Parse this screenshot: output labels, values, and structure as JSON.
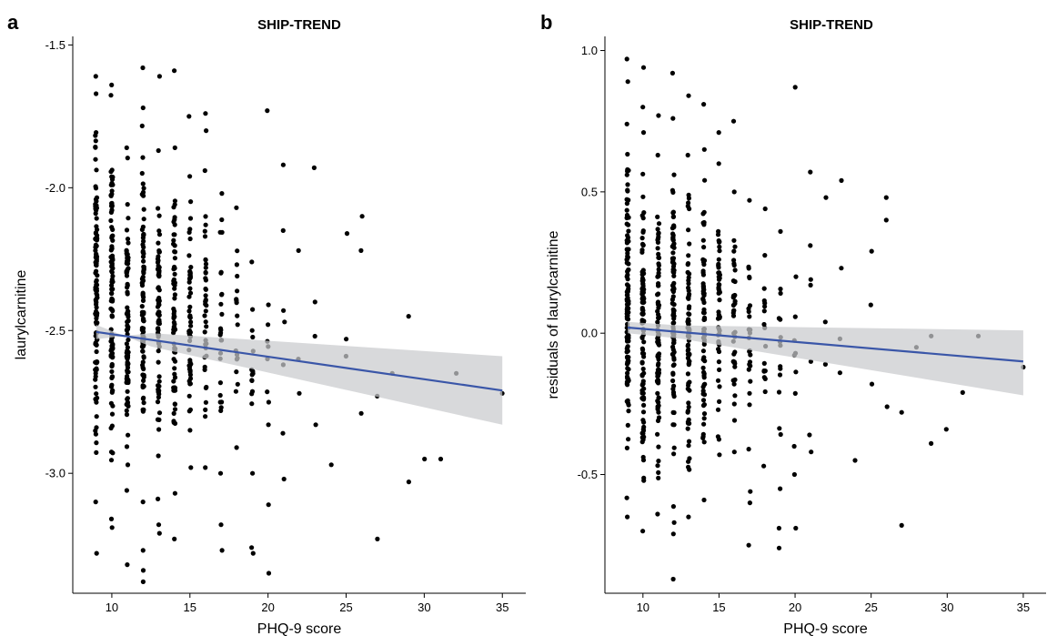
{
  "chart_data": [
    {
      "panel": "a",
      "type": "scatter",
      "title": "SHIP-TREND",
      "xlabel": "PHQ-9 score",
      "ylabel": "laurylcarnitine",
      "xlim": [
        7.5,
        36.5
      ],
      "ylim": [
        -3.42,
        -1.47
      ],
      "xticks": [
        10,
        15,
        20,
        25,
        30,
        35
      ],
      "xtick_labels": [
        "10",
        "15",
        "20",
        "25",
        "30",
        "35"
      ],
      "yticks": [
        -3.0,
        -2.5,
        -2.0,
        -1.5
      ],
      "ytick_labels": [
        "-3.0",
        "-2.5",
        "-2.0",
        "-1.5"
      ],
      "grid": false,
      "colors": {
        "points": "#000000",
        "fit_line": "#3a56a8",
        "confidence_band": "#c9cbcd"
      },
      "regression": {
        "x": [
          9,
          35
        ],
        "y": [
          -2.505,
          -2.71
        ],
        "ci_lower_at_x_end": [
          -2.48,
          -2.83
        ],
        "ci_upper_at_x_end": [
          -2.53,
          -2.59
        ]
      },
      "columns": [
        {
          "x": 9,
          "ymin": -3.1,
          "ymax": -1.61,
          "n": 120,
          "outliers": [
            -3.28
          ]
        },
        {
          "x": 10,
          "ymin": -3.16,
          "ymax": -1.64,
          "n": 110,
          "outliers": [
            -3.19
          ]
        },
        {
          "x": 11,
          "ymin": -3.06,
          "ymax": -1.86,
          "n": 95,
          "outliers": [
            -3.32
          ]
        },
        {
          "x": 12,
          "ymin": -3.1,
          "ymax": -1.72,
          "n": 95,
          "outliers": [
            -3.38,
            -3.34,
            -3.27,
            -1.58
          ]
        },
        {
          "x": 13,
          "ymin": -3.09,
          "ymax": -1.87,
          "n": 80,
          "outliers": [
            -3.21,
            -3.18,
            -1.61
          ]
        },
        {
          "x": 14,
          "ymin": -3.07,
          "ymax": -1.86,
          "n": 70,
          "outliers": [
            -3.23,
            -1.59
          ]
        },
        {
          "x": 15,
          "ymin": -2.98,
          "ymax": -1.96,
          "n": 55,
          "outliers": [
            -1.75
          ]
        },
        {
          "x": 16,
          "ymin": -2.98,
          "ymax": -1.94,
          "n": 40,
          "outliers": [
            -1.8,
            -1.74
          ]
        },
        {
          "x": 17,
          "ymin": -3.0,
          "ymax": -2.02,
          "n": 25,
          "outliers": [
            -3.27,
            -3.18
          ]
        },
        {
          "x": 18,
          "ymin": -2.91,
          "ymax": -2.07,
          "n": 18,
          "outliers": []
        },
        {
          "x": 19,
          "ymin": -3.0,
          "ymax": -2.26,
          "n": 15,
          "outliers": [
            -3.28,
            -3.26
          ]
        },
        {
          "x": 20,
          "ymin": -2.83,
          "ymax": -2.41,
          "n": 8,
          "outliers": [
            -3.35,
            -3.11,
            -1.73
          ]
        }
      ],
      "sparse_points": [
        {
          "x": 21,
          "y": -1.92
        },
        {
          "x": 21,
          "y": -2.15
        },
        {
          "x": 21,
          "y": -2.43
        },
        {
          "x": 21,
          "y": -2.47
        },
        {
          "x": 21,
          "y": -2.62
        },
        {
          "x": 21,
          "y": -2.86
        },
        {
          "x": 21,
          "y": -3.02
        },
        {
          "x": 22,
          "y": -2.22
        },
        {
          "x": 22,
          "y": -2.6
        },
        {
          "x": 22,
          "y": -2.72
        },
        {
          "x": 23,
          "y": -1.93
        },
        {
          "x": 23,
          "y": -2.4
        },
        {
          "x": 23,
          "y": -2.52
        },
        {
          "x": 23,
          "y": -2.83
        },
        {
          "x": 24,
          "y": -2.97
        },
        {
          "x": 25,
          "y": -2.16
        },
        {
          "x": 25,
          "y": -2.53
        },
        {
          "x": 25,
          "y": -2.59
        },
        {
          "x": 26,
          "y": -2.1
        },
        {
          "x": 26,
          "y": -2.22
        },
        {
          "x": 26,
          "y": -2.79
        },
        {
          "x": 27,
          "y": -2.73
        },
        {
          "x": 27,
          "y": -3.23
        },
        {
          "x": 28,
          "y": -2.65
        },
        {
          "x": 29,
          "y": -2.45
        },
        {
          "x": 29,
          "y": -3.03
        },
        {
          "x": 30,
          "y": -2.95
        },
        {
          "x": 31,
          "y": -2.95
        },
        {
          "x": 32,
          "y": -2.65
        },
        {
          "x": 35,
          "y": -2.72
        }
      ]
    },
    {
      "panel": "b",
      "type": "scatter",
      "title": "SHIP-TREND",
      "xlabel": "PHQ-9 score",
      "ylabel": "residuals of laurylcarnitine",
      "xlim": [
        7.5,
        36.5
      ],
      "ylim": [
        -0.92,
        1.05
      ],
      "xticks": [
        10,
        15,
        20,
        25,
        30,
        35
      ],
      "xtick_labels": [
        "10",
        "15",
        "20",
        "25",
        "30",
        "35"
      ],
      "yticks": [
        -0.5,
        0.0,
        0.5,
        1.0
      ],
      "ytick_labels": [
        "-0.5",
        "0.0",
        "0.5",
        "1.0"
      ],
      "grid": false,
      "colors": {
        "points": "#000000",
        "fit_line": "#3a56a8",
        "confidence_band": "#c9cbcd"
      },
      "regression": {
        "x": [
          9,
          35
        ],
        "y": [
          0.02,
          -0.1
        ],
        "ci_lower_at_x_end": [
          0.0,
          -0.22
        ],
        "ci_upper_at_x_end": [
          0.04,
          0.01
        ]
      },
      "columns": [
        {
          "x": 9,
          "ymin": -0.65,
          "ymax": 0.74,
          "n": 120,
          "outliers": [
            0.97,
            0.89
          ]
        },
        {
          "x": 10,
          "ymin": -0.7,
          "ymax": 0.71,
          "n": 110,
          "outliers": [
            0.94,
            0.8
          ]
        },
        {
          "x": 11,
          "ymin": -0.64,
          "ymax": 0.63,
          "n": 95,
          "outliers": [
            0.77
          ]
        },
        {
          "x": 12,
          "ymin": -0.67,
          "ymax": 0.76,
          "n": 95,
          "outliers": [
            -0.71,
            -0.87,
            0.92
          ]
        },
        {
          "x": 13,
          "ymin": -0.65,
          "ymax": 0.63,
          "n": 80,
          "outliers": [
            0.84
          ]
        },
        {
          "x": 14,
          "ymin": -0.59,
          "ymax": 0.65,
          "n": 70,
          "outliers": [
            0.81
          ]
        },
        {
          "x": 15,
          "ymin": -0.43,
          "ymax": 0.6,
          "n": 55,
          "outliers": [
            0.71
          ]
        },
        {
          "x": 16,
          "ymin": -0.42,
          "ymax": 0.5,
          "n": 40,
          "outliers": [
            0.75
          ]
        },
        {
          "x": 17,
          "ymin": -0.41,
          "ymax": 0.47,
          "n": 25,
          "outliers": [
            -0.56,
            -0.6,
            -0.75
          ]
        },
        {
          "x": 18,
          "ymin": -0.47,
          "ymax": 0.44,
          "n": 18,
          "outliers": []
        },
        {
          "x": 19,
          "ymin": -0.55,
          "ymax": 0.36,
          "n": 15,
          "outliers": [
            -0.69,
            -0.76
          ]
        },
        {
          "x": 20,
          "ymin": -0.4,
          "ymax": 0.2,
          "n": 8,
          "outliers": [
            -0.5,
            -0.69,
            0.87
          ]
        }
      ],
      "sparse_points": [
        {
          "x": 21,
          "y": 0.57
        },
        {
          "x": 21,
          "y": 0.31
        },
        {
          "x": 21,
          "y": 0.19
        },
        {
          "x": 21,
          "y": 0.17
        },
        {
          "x": 21,
          "y": -0.1
        },
        {
          "x": 21,
          "y": -0.36
        },
        {
          "x": 21,
          "y": -0.42
        },
        {
          "x": 22,
          "y": 0.48
        },
        {
          "x": 22,
          "y": 0.04
        },
        {
          "x": 22,
          "y": -0.11
        },
        {
          "x": 23,
          "y": 0.54
        },
        {
          "x": 23,
          "y": 0.23
        },
        {
          "x": 23,
          "y": -0.02
        },
        {
          "x": 23,
          "y": -0.14
        },
        {
          "x": 24,
          "y": -0.45
        },
        {
          "x": 25,
          "y": 0.29
        },
        {
          "x": 25,
          "y": 0.1
        },
        {
          "x": 25,
          "y": -0.18
        },
        {
          "x": 26,
          "y": 0.48
        },
        {
          "x": 26,
          "y": 0.4
        },
        {
          "x": 26,
          "y": -0.26
        },
        {
          "x": 27,
          "y": -0.28
        },
        {
          "x": 27,
          "y": -0.68
        },
        {
          "x": 28,
          "y": -0.05
        },
        {
          "x": 29,
          "y": -0.01
        },
        {
          "x": 29,
          "y": -0.39
        },
        {
          "x": 30,
          "y": -0.34
        },
        {
          "x": 31,
          "y": -0.21
        },
        {
          "x": 32,
          "y": -0.01
        },
        {
          "x": 35,
          "y": -0.12
        }
      ]
    }
  ]
}
